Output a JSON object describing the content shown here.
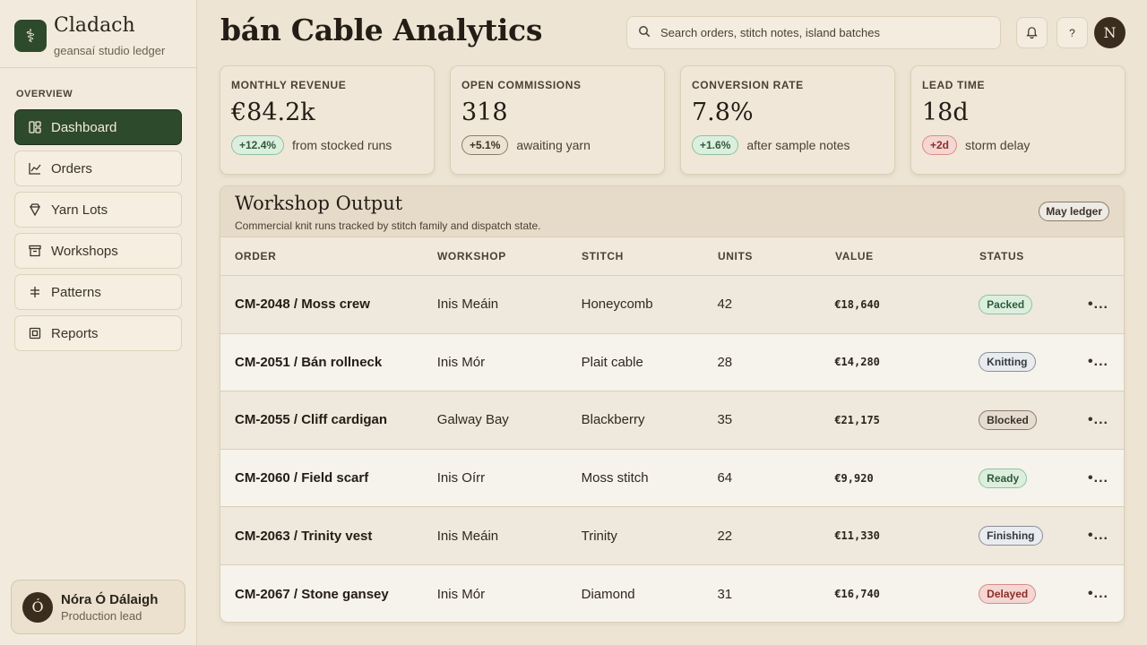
{
  "brand": {
    "name": "Cladach",
    "subtitle": "geansaí studio ledger",
    "logo_icon": "knot-icon"
  },
  "nav": {
    "heading": "OVERVIEW",
    "items": [
      {
        "label": "Dashboard",
        "icon": "dashboard-icon",
        "active": true
      },
      {
        "label": "Orders",
        "icon": "chart-icon"
      },
      {
        "label": "Yarn Lots",
        "icon": "gem-icon"
      },
      {
        "label": "Workshops",
        "icon": "archive-icon"
      },
      {
        "label": "Patterns",
        "icon": "pattern-icon"
      },
      {
        "label": "Reports",
        "icon": "report-icon"
      }
    ]
  },
  "profile": {
    "initial": "Ó",
    "name": "Nóra Ó Dálaigh",
    "role": "Production lead"
  },
  "header": {
    "title": "bán Cable Analytics",
    "search_placeholder": "Search orders, stitch notes, island batches",
    "help_label": "?",
    "avatar_initial": "N"
  },
  "kpis": [
    {
      "label": "MONTHLY REVENUE",
      "value": "€84.2k",
      "delta": "+12.4%",
      "tone": "green",
      "note": "from stocked runs"
    },
    {
      "label": "OPEN COMMISSIONS",
      "value": "318",
      "delta": "+5.1%",
      "tone": "neutral",
      "note": "awaiting yarn"
    },
    {
      "label": "CONVERSION RATE",
      "value": "7.8%",
      "delta": "+1.6%",
      "tone": "green",
      "note": "after sample notes"
    },
    {
      "label": "LEAD TIME",
      "value": "18d",
      "delta": "+2d",
      "tone": "red",
      "note": "storm delay"
    }
  ],
  "table": {
    "title": "Workshop Output",
    "subtitle": "Commercial knit runs tracked by stitch family and dispatch state.",
    "badge": "May ledger",
    "columns": [
      "ORDER",
      "WORKSHOP",
      "STITCH",
      "UNITS",
      "VALUE",
      "STATUS"
    ],
    "more_label": "•...",
    "rows": [
      {
        "order": "CM-2048 / Moss crew",
        "workshop": "Inis Meáin",
        "stitch": "Honeycomb",
        "units": "42",
        "value": "€18,640",
        "status": "Packed",
        "status_key": "packed"
      },
      {
        "order": "CM-2051 / Bán rollneck",
        "workshop": "Inis Mór",
        "stitch": "Plait cable",
        "units": "28",
        "value": "€14,280",
        "status": "Knitting",
        "status_key": "knitting"
      },
      {
        "order": "CM-2055 / Cliff cardigan",
        "workshop": "Galway Bay",
        "stitch": "Blackberry",
        "units": "35",
        "value": "€21,175",
        "status": "Blocked",
        "status_key": "blocked"
      },
      {
        "order": "CM-2060 / Field scarf",
        "workshop": "Inis Oírr",
        "stitch": "Moss stitch",
        "units": "64",
        "value": "€9,920",
        "status": "Ready",
        "status_key": "ready"
      },
      {
        "order": "CM-2063 / Trinity vest",
        "workshop": "Inis Meáin",
        "stitch": "Trinity",
        "units": "22",
        "value": "€11,330",
        "status": "Finishing",
        "status_key": "finishing"
      },
      {
        "order": "CM-2067 / Stone gansey",
        "workshop": "Inis Mór",
        "stitch": "Diamond",
        "units": "31",
        "value": "€16,740",
        "status": "Delayed",
        "status_key": "delayed"
      }
    ]
  },
  "colors": {
    "accent": "#2e4a2c",
    "background": "#ede4d3",
    "positive": "#dcefdf",
    "negative": "#f4d6d3"
  }
}
